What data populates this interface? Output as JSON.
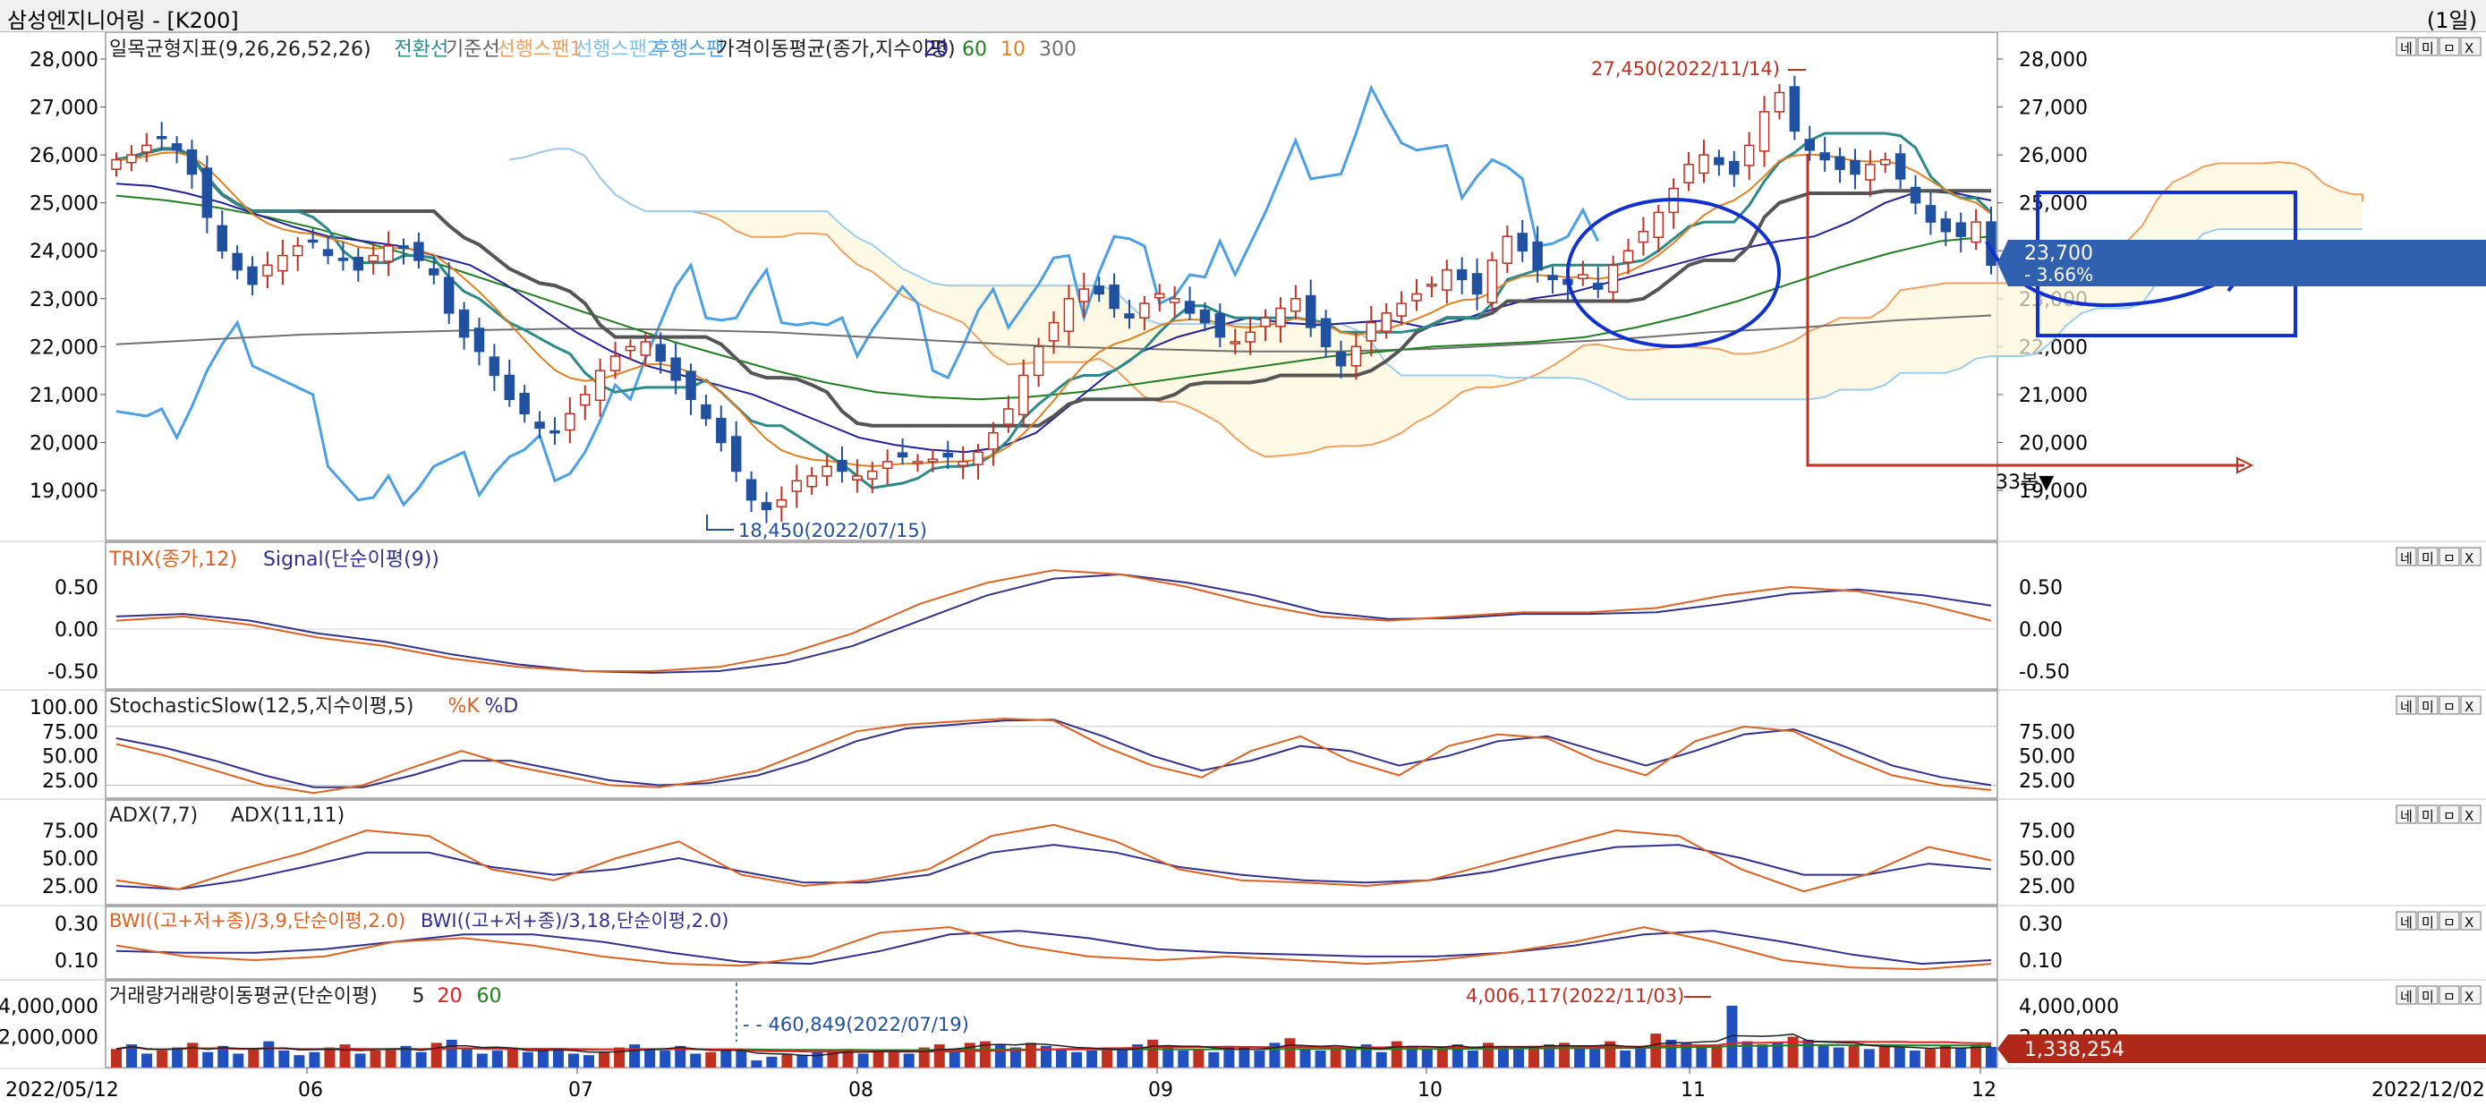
{
  "window": {
    "title": "삼성엔지니어링 - [K200]",
    "period": "(1일)"
  },
  "xaxis": {
    "start_label": "2022/05/12",
    "end_label": "2022/12/02",
    "month_labels": [
      "06",
      "07",
      "08",
      "09",
      "10",
      "11",
      "12"
    ]
  },
  "panel_buttons": [
    "네",
    "미",
    "ㅁ",
    "X"
  ],
  "price_panel": {
    "legend": [
      {
        "text": "일목균형지표(9,26,26,52,26)",
        "color": "#202020"
      },
      {
        "text": "전환선",
        "color": "#2a8a8a"
      },
      {
        "text": "기준선",
        "color": "#606060"
      },
      {
        "text": "선행스팬1",
        "color": "#f0a060"
      },
      {
        "text": "선행스팬2",
        "color": "#80c0f0"
      },
      {
        "text": "후행스팬",
        "color": "#4aa0e8"
      },
      {
        "text": "가격이동평균(종가,지수이평)",
        "color": "#202020"
      },
      {
        "text": "20",
        "color": "#2020a0"
      },
      {
        "text": "60",
        "color": "#208020"
      },
      {
        "text": "10",
        "color": "#e08020"
      },
      {
        "text": "300",
        "color": "#707070"
      }
    ],
    "y_ticks": [
      "28,000",
      "27,000",
      "26,000",
      "25,000",
      "24,000",
      "23,000",
      "22,000",
      "21,000",
      "20,000",
      "19,000"
    ],
    "annotations": {
      "high": "27,450(2022/11/14)",
      "low": "18,450(2022/07/15)",
      "bars_count": "33봉▼"
    },
    "current_price": "23,700",
    "current_change": "- 3.66%"
  },
  "trix_panel": {
    "legend": [
      {
        "text": "TRIX(종가,12)",
        "color": "#e06020"
      },
      {
        "text": "Signal(단순이평(9))",
        "color": "#303090"
      }
    ],
    "y_ticks": [
      "0.50",
      "0.00",
      "-0.50"
    ]
  },
  "stoch_panel": {
    "legend": [
      {
        "text": "StochasticSlow(12,5,지수이평,5)",
        "color": "#202020"
      },
      {
        "text": "%K",
        "color": "#e06020"
      },
      {
        "text": "%D",
        "color": "#303090"
      }
    ],
    "y_ticks_left": [
      "100.00",
      "75.00",
      "50.00",
      "25.00"
    ],
    "y_ticks_right": [
      "75.00",
      "50.00",
      "25.00"
    ]
  },
  "adx_panel": {
    "legend": [
      {
        "text": "ADX(7,7)",
        "color": "#202020"
      },
      {
        "text": "ADX(11,11)",
        "color": "#202020"
      }
    ],
    "y_ticks": [
      "75.00",
      "50.00",
      "25.00"
    ]
  },
  "bwi_panel": {
    "legend": [
      {
        "text": "BWI((고+저+종)/3,9,단순이평,2.0)",
        "color": "#e06020"
      },
      {
        "text": "BWI((고+저+종)/3,18,단순이평,2.0)",
        "color": "#303090"
      }
    ],
    "y_ticks": [
      "0.30",
      "0.10"
    ]
  },
  "volume_panel": {
    "legend": [
      {
        "text": "거래량",
        "color": "#202020"
      },
      {
        "text": "거래량이동평균(단순이평)",
        "color": "#202020"
      },
      {
        "text": "5",
        "color": "#202020"
      },
      {
        "text": "20",
        "color": "#e02020"
      },
      {
        "text": "60",
        "color": "#208020"
      }
    ],
    "y_ticks": [
      "4,000,000",
      "2,000,000"
    ],
    "annotations": {
      "high": "4,006,117(2022/11/03)",
      "low": "460,849(2022/07/19)"
    },
    "current_volume": "1,338,254"
  },
  "chart_data": {
    "type": "candlestick",
    "title": "삼성엔지니어링 - [K200]",
    "x_range": [
      "2022/05/12",
      "2022/12/02"
    ],
    "price_ylim": [
      18450,
      28000
    ],
    "price_series_close": [
      25900,
      26000,
      26200,
      26350,
      26100,
      25600,
      24700,
      24000,
      23600,
      23300,
      23700,
      23900,
      24100,
      24200,
      23900,
      23800,
      23600,
      23900,
      24100,
      24050,
      23800,
      23500,
      22700,
      22200,
      21900,
      21400,
      20900,
      20600,
      20300,
      20200,
      20600,
      21000,
      21500,
      21800,
      22000,
      22100,
      21700,
      21300,
      20900,
      20500,
      20000,
      19400,
      18800,
      18600,
      18800,
      19200,
      19300,
      19500,
      19400,
      19300,
      19400,
      19600,
      19700,
      19600,
      19650,
      19700,
      19600,
      19800,
      20200,
      20700,
      21400,
      22000,
      22500,
      23000,
      23200,
      23100,
      22800,
      22600,
      22900,
      23100,
      23000,
      22700,
      22500,
      22200,
      22100,
      22300,
      22600,
      22800,
      23000,
      22400,
      22000,
      21600,
      22000,
      22500,
      22700,
      22900,
      23100,
      23300,
      23600,
      23400,
      23100,
      23800,
      24300,
      24000,
      23600,
      23400,
      23300,
      23500,
      23200,
      23700,
      24000,
      24400,
      24800,
      25300,
      25800,
      26000,
      25800,
      25600,
      26200,
      26900,
      27300,
      26500,
      26100,
      25900,
      25700,
      25600,
      25800,
      25900,
      25500,
      25000,
      24600,
      24400,
      24300,
      24600,
      23700
    ],
    "price_high": 27450,
    "price_high_date": "2022/11/14",
    "price_low": 18450,
    "price_low_date": "2022/07/15",
    "last_close": 23700,
    "last_change_pct": -3.66,
    "ma20": [
      25400,
      25350,
      25200,
      25000,
      24750,
      24500,
      24300,
      24200,
      24100,
      23900,
      23700,
      23300,
      22800,
      22300,
      21900,
      21600,
      21400,
      21200,
      21000,
      20700,
      20400,
      20100,
      19950,
      19850,
      19800,
      19900,
      20200,
      20800,
      21400,
      21900,
      22200,
      22400,
      22600,
      22500,
      22450,
      22500,
      22550,
      22400,
      22550,
      22800,
      23000,
      23100,
      23300,
      23500,
      23700,
      23900,
      24050,
      24200,
      24300,
      24600,
      25000,
      25250,
      25200,
      25050
    ],
    "ma60": [
      25150,
      25050,
      24900,
      24700,
      24450,
      24150,
      23850,
      23500,
      23150,
      22800,
      22450,
      22100,
      21800,
      21500,
      21250,
      21050,
      20950,
      20900,
      20950,
      21050,
      21200,
      21350,
      21500,
      21650,
      21800,
      21900,
      22000,
      22050,
      22100,
      22200,
      22400,
      22650,
      22950,
      23300,
      23650,
      23950,
      24200,
      24300
    ],
    "ma300": [
      22050,
      22150,
      22250,
      22300,
      22350,
      22380,
      22350,
      22300,
      22200,
      22100,
      22000,
      21950,
      21900,
      21900,
      21950,
      22050,
      22150,
      22300,
      22400,
      22550,
      22650
    ],
    "trix": [
      0.1,
      0.15,
      0.05,
      -0.1,
      -0.2,
      -0.35,
      -0.45,
      -0.5,
      -0.5,
      -0.45,
      -0.3,
      -0.05,
      0.3,
      0.55,
      0.7,
      0.65,
      0.5,
      0.3,
      0.15,
      0.1,
      0.15,
      0.2,
      0.2,
      0.25,
      0.4,
      0.5,
      0.45,
      0.3,
      0.1
    ],
    "trix_signal": [
      0.15,
      0.18,
      0.1,
      -0.05,
      -0.15,
      -0.3,
      -0.42,
      -0.5,
      -0.52,
      -0.5,
      -0.4,
      -0.2,
      0.1,
      0.4,
      0.6,
      0.65,
      0.55,
      0.4,
      0.2,
      0.12,
      0.13,
      0.18,
      0.18,
      0.2,
      0.3,
      0.42,
      0.47,
      0.4,
      0.28
    ],
    "stoch_k": [
      62,
      50,
      35,
      20,
      12,
      20,
      38,
      55,
      40,
      30,
      20,
      18,
      25,
      35,
      55,
      75,
      82,
      85,
      88,
      86,
      60,
      40,
      28,
      55,
      70,
      45,
      30,
      60,
      72,
      68,
      45,
      30,
      65,
      80,
      75,
      50,
      30,
      20,
      15
    ],
    "stoch_d": [
      68,
      58,
      45,
      30,
      18,
      18,
      30,
      45,
      45,
      35,
      25,
      20,
      22,
      30,
      45,
      65,
      78,
      82,
      86,
      87,
      70,
      50,
      35,
      45,
      60,
      55,
      40,
      50,
      65,
      70,
      55,
      40,
      55,
      72,
      77,
      60,
      40,
      28,
      20
    ],
    "adx_7": [
      30,
      22,
      40,
      55,
      75,
      70,
      40,
      30,
      50,
      65,
      35,
      25,
      30,
      40,
      70,
      80,
      65,
      40,
      30,
      28,
      25,
      30,
      45,
      60,
      75,
      70,
      40,
      20,
      35,
      60,
      48
    ],
    "adx_11": [
      25,
      22,
      30,
      42,
      55,
      55,
      42,
      35,
      40,
      50,
      38,
      28,
      28,
      35,
      55,
      62,
      55,
      42,
      35,
      30,
      28,
      30,
      38,
      50,
      60,
      62,
      50,
      35,
      35,
      45,
      40
    ],
    "bwi_9": [
      0.18,
      0.12,
      0.1,
      0.12,
      0.2,
      0.22,
      0.18,
      0.12,
      0.08,
      0.07,
      0.12,
      0.25,
      0.28,
      0.18,
      0.12,
      0.1,
      0.12,
      0.1,
      0.08,
      0.1,
      0.14,
      0.2,
      0.28,
      0.2,
      0.1,
      0.06,
      0.05,
      0.08
    ],
    "bwi_18": [
      0.15,
      0.14,
      0.14,
      0.16,
      0.2,
      0.24,
      0.24,
      0.2,
      0.14,
      0.09,
      0.08,
      0.15,
      0.24,
      0.26,
      0.22,
      0.16,
      0.14,
      0.13,
      0.12,
      0.12,
      0.14,
      0.18,
      0.24,
      0.26,
      0.2,
      0.13,
      0.08,
      0.1
    ],
    "volume": [
      1200000,
      1500000,
      900000,
      1100000,
      1300000,
      1600000,
      1000000,
      1400000,
      900000,
      1200000,
      1700000,
      1100000,
      800000,
      1000000,
      1300000,
      1500000,
      900000,
      1100000,
      1200000,
      1400000,
      1000000,
      1600000,
      1800000,
      1200000,
      900000,
      1100000,
      1300000,
      1000000,
      1200000,
      1100000,
      900000,
      800000,
      1000000,
      1300000,
      1500000,
      1200000,
      1100000,
      1400000,
      900000,
      1000000,
      1200000,
      1100000,
      460849,
      700000,
      900000,
      800000,
      1000000,
      1100000,
      1200000,
      900000,
      1000000,
      1100000,
      900000,
      1300000,
      1500000,
      1200000,
      1600000,
      1700000,
      1500000,
      1300000,
      1600000,
      1400000,
      1200000,
      1000000,
      1100000,
      1300000,
      1200000,
      1500000,
      1800000,
      1300000,
      1100000,
      1200000,
      1000000,
      1400000,
      1300000,
      1100000,
      1600000,
      1900000,
      1200000,
      1100000,
      1300000,
      1200000,
      1500000,
      1000000,
      1700000,
      1400000,
      1200000,
      1300000,
      1500000,
      1100000,
      1600000,
      1300000,
      1200000,
      1400000,
      1500000,
      1600000,
      1300000,
      1200000,
      1700000,
      1100000,
      1300000,
      2200000,
      1800000,
      1600000,
      1400000,
      1500000,
      4006117,
      1700000,
      1500000,
      1600000,
      2000000,
      1800000,
      1400000,
      1300000,
      1500000,
      1200000,
      1400000,
      1300000,
      1100000,
      1200000,
      1400000,
      1300000,
      1500000,
      1338254
    ],
    "volume_high": 4006117,
    "volume_high_date": "2022/11/03",
    "volume_low": 460849,
    "volume_low_date": "2022/07/19"
  }
}
